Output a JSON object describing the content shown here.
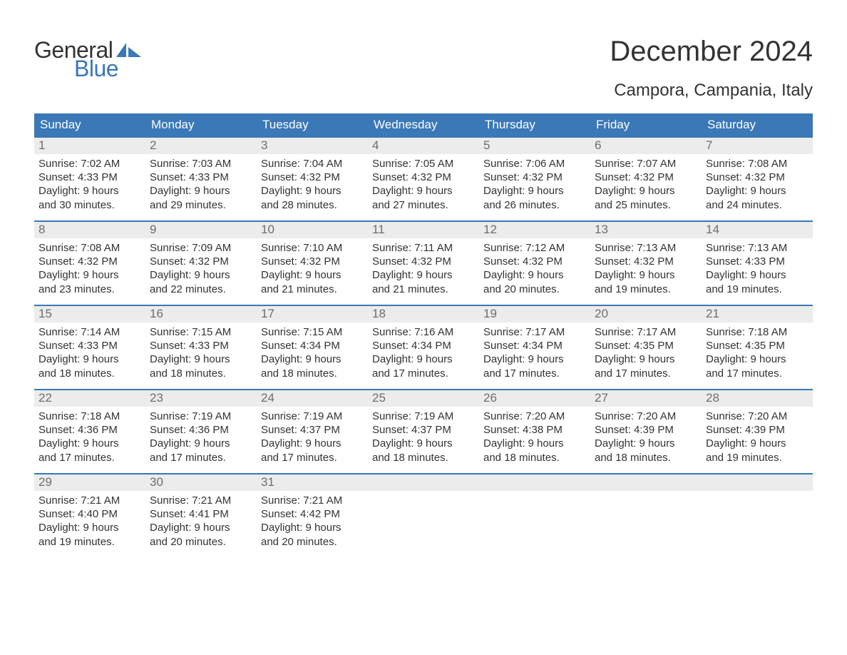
{
  "colors": {
    "brand_blue": "#3a78b8",
    "header_text": "#ffffff",
    "daynum_bg": "#ececec",
    "daynum_text": "#6d6d6d",
    "body_text": "#333333",
    "background": "#ffffff"
  },
  "logo": {
    "text_general": "General",
    "text_blue": "Blue"
  },
  "heading": {
    "month_title": "December 2024",
    "location": "Campora, Campania, Italy"
  },
  "weekdays": [
    "Sunday",
    "Monday",
    "Tuesday",
    "Wednesday",
    "Thursday",
    "Friday",
    "Saturday"
  ],
  "weeks": [
    [
      {
        "day": "1",
        "sunrise": "Sunrise: 7:02 AM",
        "sunset": "Sunset: 4:33 PM",
        "daylight1": "Daylight: 9 hours",
        "daylight2": "and 30 minutes."
      },
      {
        "day": "2",
        "sunrise": "Sunrise: 7:03 AM",
        "sunset": "Sunset: 4:33 PM",
        "daylight1": "Daylight: 9 hours",
        "daylight2": "and 29 minutes."
      },
      {
        "day": "3",
        "sunrise": "Sunrise: 7:04 AM",
        "sunset": "Sunset: 4:32 PM",
        "daylight1": "Daylight: 9 hours",
        "daylight2": "and 28 minutes."
      },
      {
        "day": "4",
        "sunrise": "Sunrise: 7:05 AM",
        "sunset": "Sunset: 4:32 PM",
        "daylight1": "Daylight: 9 hours",
        "daylight2": "and 27 minutes."
      },
      {
        "day": "5",
        "sunrise": "Sunrise: 7:06 AM",
        "sunset": "Sunset: 4:32 PM",
        "daylight1": "Daylight: 9 hours",
        "daylight2": "and 26 minutes."
      },
      {
        "day": "6",
        "sunrise": "Sunrise: 7:07 AM",
        "sunset": "Sunset: 4:32 PM",
        "daylight1": "Daylight: 9 hours",
        "daylight2": "and 25 minutes."
      },
      {
        "day": "7",
        "sunrise": "Sunrise: 7:08 AM",
        "sunset": "Sunset: 4:32 PM",
        "daylight1": "Daylight: 9 hours",
        "daylight2": "and 24 minutes."
      }
    ],
    [
      {
        "day": "8",
        "sunrise": "Sunrise: 7:08 AM",
        "sunset": "Sunset: 4:32 PM",
        "daylight1": "Daylight: 9 hours",
        "daylight2": "and 23 minutes."
      },
      {
        "day": "9",
        "sunrise": "Sunrise: 7:09 AM",
        "sunset": "Sunset: 4:32 PM",
        "daylight1": "Daylight: 9 hours",
        "daylight2": "and 22 minutes."
      },
      {
        "day": "10",
        "sunrise": "Sunrise: 7:10 AM",
        "sunset": "Sunset: 4:32 PM",
        "daylight1": "Daylight: 9 hours",
        "daylight2": "and 21 minutes."
      },
      {
        "day": "11",
        "sunrise": "Sunrise: 7:11 AM",
        "sunset": "Sunset: 4:32 PM",
        "daylight1": "Daylight: 9 hours",
        "daylight2": "and 21 minutes."
      },
      {
        "day": "12",
        "sunrise": "Sunrise: 7:12 AM",
        "sunset": "Sunset: 4:32 PM",
        "daylight1": "Daylight: 9 hours",
        "daylight2": "and 20 minutes."
      },
      {
        "day": "13",
        "sunrise": "Sunrise: 7:13 AM",
        "sunset": "Sunset: 4:32 PM",
        "daylight1": "Daylight: 9 hours",
        "daylight2": "and 19 minutes."
      },
      {
        "day": "14",
        "sunrise": "Sunrise: 7:13 AM",
        "sunset": "Sunset: 4:33 PM",
        "daylight1": "Daylight: 9 hours",
        "daylight2": "and 19 minutes."
      }
    ],
    [
      {
        "day": "15",
        "sunrise": "Sunrise: 7:14 AM",
        "sunset": "Sunset: 4:33 PM",
        "daylight1": "Daylight: 9 hours",
        "daylight2": "and 18 minutes."
      },
      {
        "day": "16",
        "sunrise": "Sunrise: 7:15 AM",
        "sunset": "Sunset: 4:33 PM",
        "daylight1": "Daylight: 9 hours",
        "daylight2": "and 18 minutes."
      },
      {
        "day": "17",
        "sunrise": "Sunrise: 7:15 AM",
        "sunset": "Sunset: 4:34 PM",
        "daylight1": "Daylight: 9 hours",
        "daylight2": "and 18 minutes."
      },
      {
        "day": "18",
        "sunrise": "Sunrise: 7:16 AM",
        "sunset": "Sunset: 4:34 PM",
        "daylight1": "Daylight: 9 hours",
        "daylight2": "and 17 minutes."
      },
      {
        "day": "19",
        "sunrise": "Sunrise: 7:17 AM",
        "sunset": "Sunset: 4:34 PM",
        "daylight1": "Daylight: 9 hours",
        "daylight2": "and 17 minutes."
      },
      {
        "day": "20",
        "sunrise": "Sunrise: 7:17 AM",
        "sunset": "Sunset: 4:35 PM",
        "daylight1": "Daylight: 9 hours",
        "daylight2": "and 17 minutes."
      },
      {
        "day": "21",
        "sunrise": "Sunrise: 7:18 AM",
        "sunset": "Sunset: 4:35 PM",
        "daylight1": "Daylight: 9 hours",
        "daylight2": "and 17 minutes."
      }
    ],
    [
      {
        "day": "22",
        "sunrise": "Sunrise: 7:18 AM",
        "sunset": "Sunset: 4:36 PM",
        "daylight1": "Daylight: 9 hours",
        "daylight2": "and 17 minutes."
      },
      {
        "day": "23",
        "sunrise": "Sunrise: 7:19 AM",
        "sunset": "Sunset: 4:36 PM",
        "daylight1": "Daylight: 9 hours",
        "daylight2": "and 17 minutes."
      },
      {
        "day": "24",
        "sunrise": "Sunrise: 7:19 AM",
        "sunset": "Sunset: 4:37 PM",
        "daylight1": "Daylight: 9 hours",
        "daylight2": "and 17 minutes."
      },
      {
        "day": "25",
        "sunrise": "Sunrise: 7:19 AM",
        "sunset": "Sunset: 4:37 PM",
        "daylight1": "Daylight: 9 hours",
        "daylight2": "and 18 minutes."
      },
      {
        "day": "26",
        "sunrise": "Sunrise: 7:20 AM",
        "sunset": "Sunset: 4:38 PM",
        "daylight1": "Daylight: 9 hours",
        "daylight2": "and 18 minutes."
      },
      {
        "day": "27",
        "sunrise": "Sunrise: 7:20 AM",
        "sunset": "Sunset: 4:39 PM",
        "daylight1": "Daylight: 9 hours",
        "daylight2": "and 18 minutes."
      },
      {
        "day": "28",
        "sunrise": "Sunrise: 7:20 AM",
        "sunset": "Sunset: 4:39 PM",
        "daylight1": "Daylight: 9 hours",
        "daylight2": "and 19 minutes."
      }
    ],
    [
      {
        "day": "29",
        "sunrise": "Sunrise: 7:21 AM",
        "sunset": "Sunset: 4:40 PM",
        "daylight1": "Daylight: 9 hours",
        "daylight2": "and 19 minutes."
      },
      {
        "day": "30",
        "sunrise": "Sunrise: 7:21 AM",
        "sunset": "Sunset: 4:41 PM",
        "daylight1": "Daylight: 9 hours",
        "daylight2": "and 20 minutes."
      },
      {
        "day": "31",
        "sunrise": "Sunrise: 7:21 AM",
        "sunset": "Sunset: 4:42 PM",
        "daylight1": "Daylight: 9 hours",
        "daylight2": "and 20 minutes."
      },
      {
        "day": "",
        "sunrise": "",
        "sunset": "",
        "daylight1": "",
        "daylight2": ""
      },
      {
        "day": "",
        "sunrise": "",
        "sunset": "",
        "daylight1": "",
        "daylight2": ""
      },
      {
        "day": "",
        "sunrise": "",
        "sunset": "",
        "daylight1": "",
        "daylight2": ""
      },
      {
        "day": "",
        "sunrise": "",
        "sunset": "",
        "daylight1": "",
        "daylight2": ""
      }
    ]
  ]
}
